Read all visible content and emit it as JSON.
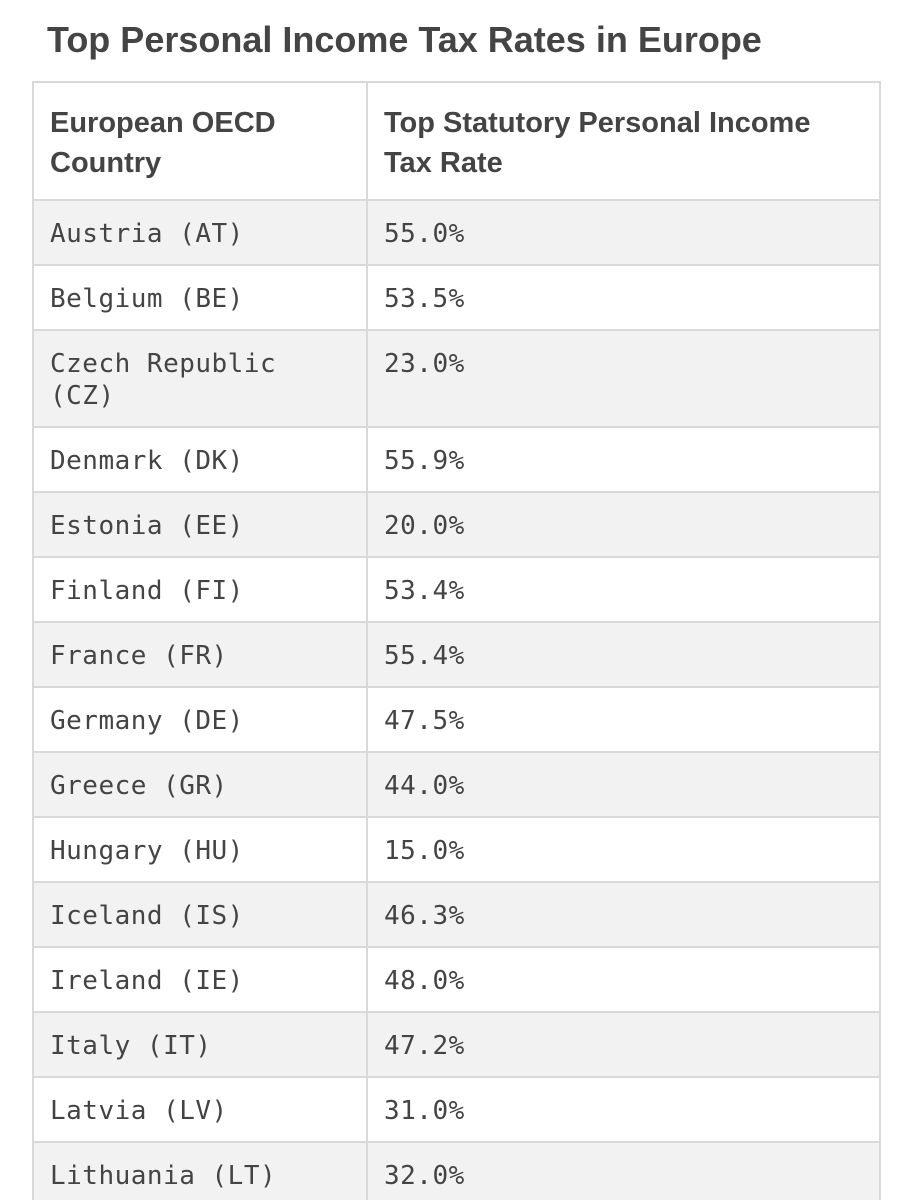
{
  "page": {
    "title": "Top Personal Income Tax Rates in Europe"
  },
  "table": {
    "headers": {
      "country": "European OECD Country",
      "rate": "Top Statutory Personal Income Tax Rate"
    },
    "rows": [
      {
        "country": "Austria (AT)",
        "rate": "55.0%"
      },
      {
        "country": "Belgium (BE)",
        "rate": "53.5%"
      },
      {
        "country": "Czech Republic (CZ)",
        "rate": "23.0%"
      },
      {
        "country": "Denmark (DK)",
        "rate": "55.9%"
      },
      {
        "country": "Estonia (EE)",
        "rate": "20.0%"
      },
      {
        "country": "Finland (FI)",
        "rate": "53.4%"
      },
      {
        "country": "France (FR)",
        "rate": "55.4%"
      },
      {
        "country": "Germany (DE)",
        "rate": "47.5%"
      },
      {
        "country": "Greece (GR)",
        "rate": "44.0%"
      },
      {
        "country": "Hungary (HU)",
        "rate": "15.0%"
      },
      {
        "country": "Iceland (IS)",
        "rate": "46.3%"
      },
      {
        "country": "Ireland (IE)",
        "rate": "48.0%"
      },
      {
        "country": "Italy (IT)",
        "rate": "47.2%"
      },
      {
        "country": "Latvia (LV)",
        "rate": "31.0%"
      },
      {
        "country": "Lithuania (LT)",
        "rate": "32.0%"
      }
    ]
  },
  "colors": {
    "text": "#444444",
    "stripe": "#f2f2f2",
    "border": "#d9d9d9",
    "background": "#ffffff"
  }
}
